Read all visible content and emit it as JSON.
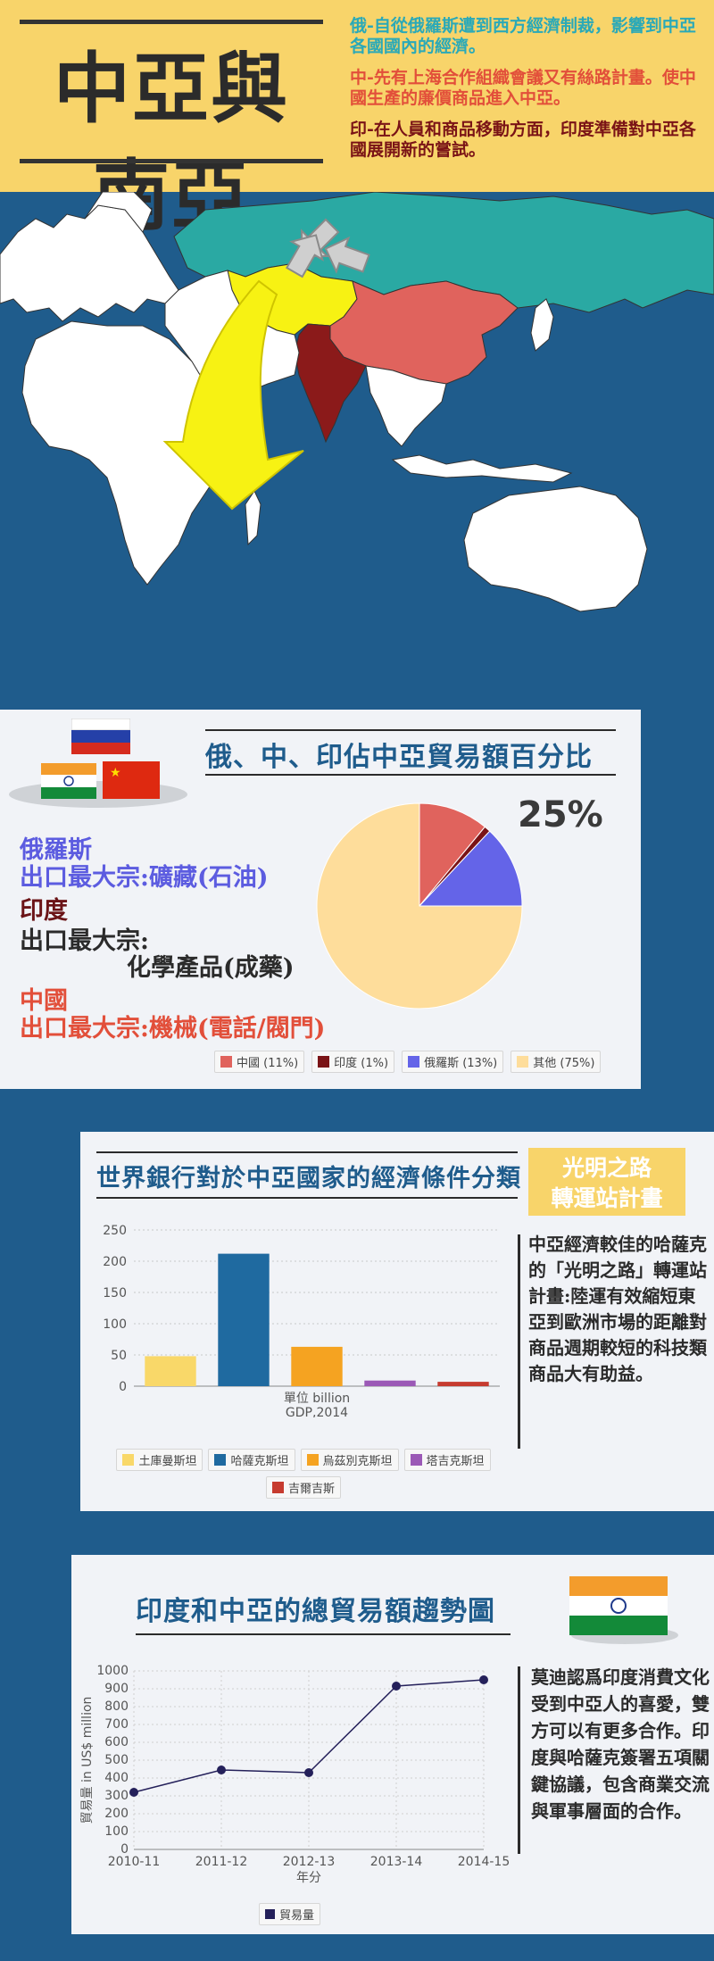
{
  "header": {
    "title": "中亞與南亞",
    "notes": {
      "russia": "俄-自從俄羅斯遭到西方經濟制裁，影響到中亞各國國內的經濟。",
      "china": "中-先有上海合作組織會議又有絲路計畫。使中國生產的廉價商品進入中亞。",
      "india": "印-在人員和商品移動方面，印度準備對中亞各國展開新的嘗試。"
    }
  },
  "colors": {
    "ocean": "#1f5c8c",
    "header_bg": "#f8d46a",
    "russia": "#2aa9a3",
    "china": "#e0635d",
    "india": "#8b1a1a",
    "central_asia": "#f7f213",
    "land": "#ffffff"
  },
  "trade_share": {
    "title": "俄、中、印佔中亞貿易額百分比",
    "highlight": "25%",
    "russia": {
      "name": "俄羅斯",
      "desc": "出口最大宗:礦藏(石油)"
    },
    "india": {
      "name": "印度",
      "desc1": "出口最大宗:",
      "desc2": "化學產品(成藥)"
    },
    "china": {
      "name": "中國",
      "desc": "出口最大宗:機械(電話/閥門)"
    },
    "legend": [
      "中國 (11%)",
      "印度 (1%)",
      "俄羅斯 (13%)",
      "其他 (75%)"
    ],
    "flag_icons": [
      "russia-flag-icon",
      "india-flag-icon",
      "china-flag-icon"
    ]
  },
  "worldbank": {
    "title": "世界銀行對於中亞國家的經濟條件分類",
    "badge_line1": "光明之路",
    "badge_line2": "轉運站計畫",
    "side_text": "中亞經濟較佳的哈薩克的「光明之路」轉運站計畫:陸運有效縮短東亞到歐洲市場的距離對商品週期較短的科技類商品大有助益。",
    "legend": [
      "土庫曼斯坦",
      "哈薩克斯坦",
      "烏茲別克斯坦",
      "塔吉克斯坦",
      "吉爾吉斯"
    ]
  },
  "india_trade": {
    "title": "印度和中亞的總貿易額趨勢圖",
    "side_text": "莫迪認爲印度消費文化受到中亞人的喜愛，雙方可以有更多合作。印度與哈薩克簽署五項關鍵協議，包含商業交流與軍事層面的合作。",
    "legend": [
      "貿易量"
    ]
  },
  "chart_data": [
    {
      "type": "pie",
      "title": "俄、中、印佔中亞貿易額百分比",
      "categories": [
        "中國",
        "印度",
        "俄羅斯",
        "其他"
      ],
      "values": [
        11,
        1,
        13,
        75
      ],
      "colors": [
        "#e0635d",
        "#7a1316",
        "#6464e8",
        "#fedd9b"
      ],
      "legend_position": "bottom"
    },
    {
      "type": "bar",
      "title": "世界銀行對於中亞國家的經濟條件分類",
      "categories": [
        "土庫曼斯坦",
        "哈薩克斯坦",
        "烏茲別克斯坦",
        "塔吉克斯坦",
        "吉爾吉斯"
      ],
      "values": [
        48,
        212,
        63,
        9,
        7
      ],
      "colors": [
        "#f9d869",
        "#1f6aa0",
        "#f5a321",
        "#9b59b6",
        "#c63b2f"
      ],
      "xlabel": "單位 billion",
      "xlabel2": "GDP,2014",
      "ylim": [
        0,
        250
      ],
      "yticks": [
        0,
        50,
        100,
        150,
        200,
        250
      ],
      "grid": true,
      "legend_position": "bottom"
    },
    {
      "type": "line",
      "title": "印度和中亞的總貿易額趨勢圖",
      "categories": [
        "2010-11",
        "2011-12",
        "2012-13",
        "2013-14",
        "2014-15"
      ],
      "series": [
        {
          "name": "貿易量",
          "values": [
            320,
            445,
            430,
            915,
            950
          ]
        }
      ],
      "xlabel": "年分",
      "ylabel": "貿易量 in US$ million",
      "ylim": [
        0,
        1000
      ],
      "yticks": [
        0,
        100,
        200,
        300,
        400,
        500,
        600,
        700,
        800,
        900,
        1000
      ],
      "grid": true,
      "legend_position": "bottom"
    }
  ]
}
